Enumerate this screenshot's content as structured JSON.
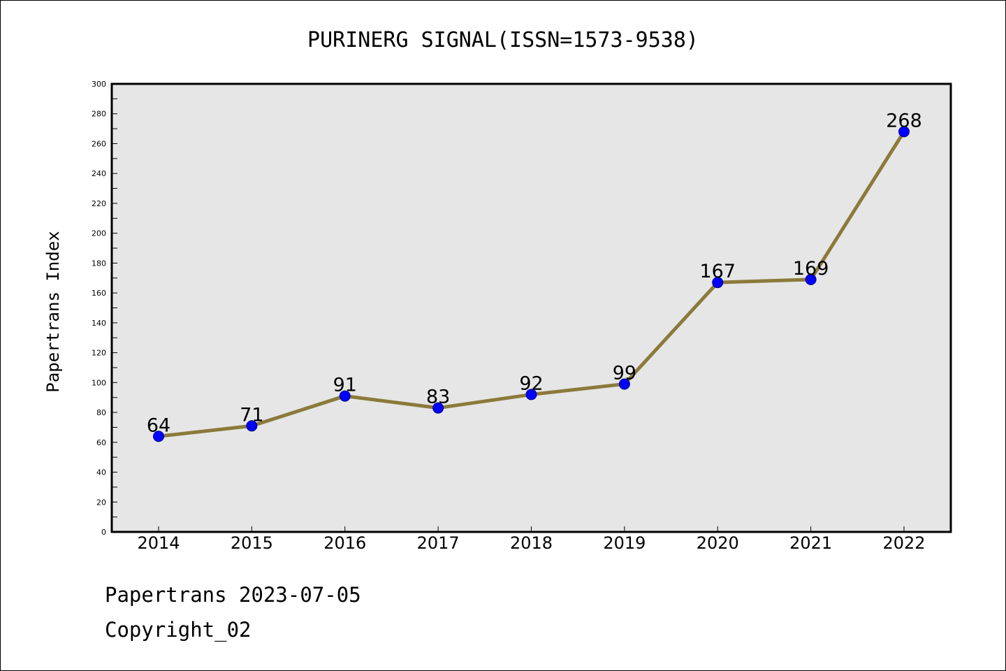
{
  "chart_data": {
    "type": "line",
    "title": "PURINERG SIGNAL(ISSN=1573-9538)",
    "xlabel": "",
    "ylabel": "Papertrans Index",
    "categories": [
      "2014",
      "2015",
      "2016",
      "2017",
      "2018",
      "2019",
      "2020",
      "2021",
      "2022"
    ],
    "series": [
      {
        "values": [
          64,
          71,
          91,
          83,
          92,
          99,
          167,
          169,
          268
        ]
      }
    ],
    "ylim": [
      0,
      300
    ],
    "yticks": [
      0,
      20,
      40,
      60,
      80,
      100,
      120,
      140,
      160,
      180,
      200,
      220,
      240,
      260,
      280,
      300
    ],
    "grid": false,
    "data_labels": true,
    "colors": {
      "line": "#8b7a3a",
      "marker": "#0000ff",
      "marker_edge": "#00008b",
      "plot_bg": "#e6e6e6"
    }
  },
  "footer": {
    "line1": "Papertrans 2023-07-05",
    "line2": "Copyright_02"
  }
}
